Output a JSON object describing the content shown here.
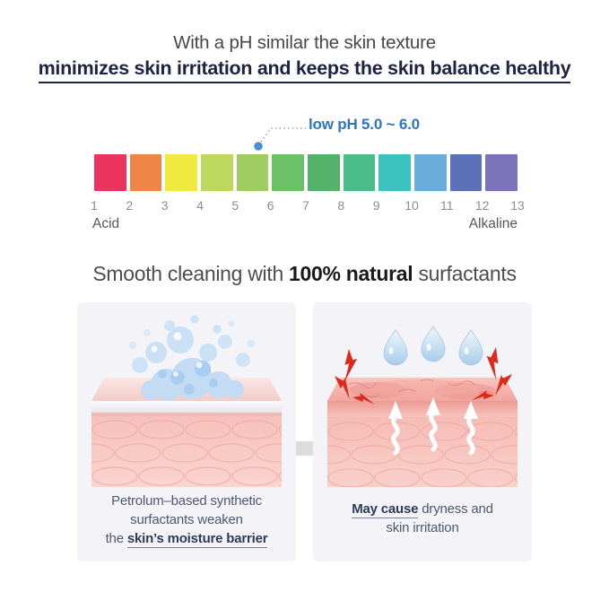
{
  "header": {
    "line1": "With a pH similar the skin texture",
    "line2": "minimizes skin irritation and keeps the skin balance healthy"
  },
  "ph_scale": {
    "callout_label": "low pH 5.0 ~ 6.0",
    "segment_colors": [
      "#ec3360",
      "#f0854a",
      "#f0e93e",
      "#bed75f",
      "#9ecc63",
      "#6cc168",
      "#55b26b",
      "#4bbd8b",
      "#3ec2bd",
      "#68aed8",
      "#5a71b8",
      "#7b74bb"
    ],
    "tick_labels": [
      "1",
      "2",
      "3",
      "4",
      "5",
      "6",
      "7",
      "8",
      "9",
      "10",
      "11",
      "12",
      "13"
    ],
    "left_label": "Acid",
    "right_label": "Alkaline"
  },
  "subheader": {
    "prefix": "Smooth cleaning with ",
    "bold": "100% natural",
    "suffix": " surfactants"
  },
  "panels": {
    "left": {
      "caption_line1": "Petrolum–based synthetic",
      "caption_line2": "surfactants weaken",
      "caption_line3_prefix": "the ",
      "caption_line3_bold": "skin’s moisture barrier"
    },
    "right": {
      "caption_bold": "May cause",
      "caption_suffix": " dryness and",
      "caption_line2": "skin irritation"
    }
  },
  "colors": {
    "accent_blue": "#2e74c4",
    "title_navy": "#1d2342",
    "panel_background": "#f4f4f8",
    "arrow_gray": "#dcdcdc",
    "bolt_red": "#dc2a1c"
  }
}
